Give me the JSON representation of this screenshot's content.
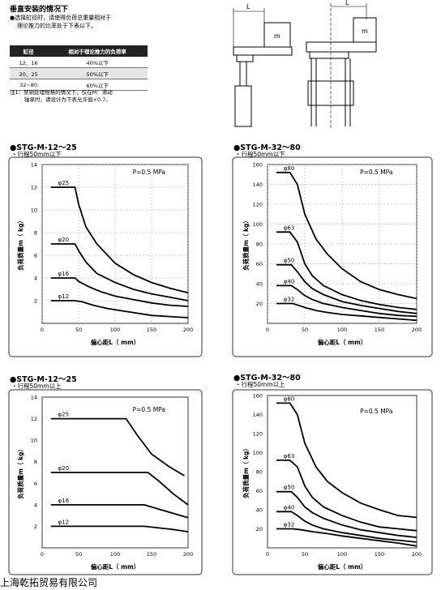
{
  "header": {
    "heading": "垂直安装的情况下",
    "note_line1": "●选择缸径时，请使得负荷总重量相对于",
    "note_line2": "理论推力的比率处于下表以下。"
  },
  "load_table": {
    "headers": [
      "缸径",
      "相对于理论推力的负荷率"
    ],
    "rows": [
      [
        "12、16",
        "40%以下"
      ],
      [
        "20、25",
        "50%以下"
      ],
      [
        "32~80",
        "60%以下"
      ]
    ]
  },
  "footnote": {
    "line1": "注1：禁铜处理规格的情况下，仅在M：滑动",
    "line2": "轴承时，请设计为下表允许值×0.7。"
  },
  "diagram": {
    "dim_label_left": "L",
    "dim_label_right": "L",
    "mass_label_left": "m",
    "mass_label_right": "m"
  },
  "company": "上海乾拓贸易有限公司",
  "colors": {
    "line": "#000000",
    "plot_bg": "#ffffff",
    "frame": "#333333"
  },
  "chart_data": [
    {
      "type": "line",
      "title": "●STG-M-12～25",
      "subtitle": "・行程50mm以下",
      "xlabel": "偏心距L（ mm）",
      "ylabel": "负荷质量m（ kg）",
      "annotation": "P=0.5 MPa",
      "xlim": [
        0,
        200
      ],
      "ylim": [
        0,
        14
      ],
      "x_ticks": [
        "0",
        "50",
        "100",
        "150",
        "200"
      ],
      "y_ticks": [
        "2",
        "4",
        "6",
        "8",
        "10",
        "12",
        "14"
      ],
      "grid": true,
      "series": [
        {
          "name": "φ25",
          "points": [
            [
              12,
              12
            ],
            [
              45,
              12
            ],
            [
              50,
              10.5
            ],
            [
              60,
              8.5
            ],
            [
              75,
              7
            ],
            [
              100,
              5.3
            ],
            [
              125,
              4.3
            ],
            [
              150,
              3.6
            ],
            [
              175,
              3.1
            ],
            [
              200,
              2.7
            ]
          ]
        },
        {
          "name": "φ20",
          "points": [
            [
              12,
              7
            ],
            [
              45,
              7
            ],
            [
              50,
              6.4
            ],
            [
              60,
              5.4
            ],
            [
              75,
              4.4
            ],
            [
              100,
              3.6
            ],
            [
              125,
              3.0
            ],
            [
              150,
              2.6
            ],
            [
              175,
              2.3
            ],
            [
              200,
              2.0
            ]
          ]
        },
        {
          "name": "φ16",
          "points": [
            [
              12,
              4
            ],
            [
              45,
              4
            ],
            [
              50,
              3.7
            ],
            [
              65,
              3.2
            ],
            [
              80,
              2.8
            ],
            [
              100,
              2.4
            ],
            [
              125,
              2.1
            ],
            [
              150,
              1.8
            ],
            [
              175,
              1.6
            ],
            [
              200,
              1.5
            ]
          ]
        },
        {
          "name": "φ12",
          "points": [
            [
              12,
              2
            ],
            [
              45,
              2
            ],
            [
              55,
              1.9
            ],
            [
              70,
              1.6
            ],
            [
              90,
              1.3
            ],
            [
              110,
              1.1
            ],
            [
              130,
              0.9
            ],
            [
              150,
              0.7
            ],
            [
              175,
              0.6
            ],
            [
              200,
              0.5
            ]
          ]
        }
      ]
    },
    {
      "type": "line",
      "title": "●STG-M-32～80",
      "subtitle": "・行程50mm以下",
      "xlabel": "偏心距L（ mm）",
      "ylabel": "负荷质量m（ kg）",
      "annotation": "P=0.5 MPa",
      "xlim": [
        0,
        200
      ],
      "ylim": [
        0,
        160
      ],
      "x_ticks": [
        "0",
        "50",
        "100",
        "150",
        "200"
      ],
      "y_ticks": [
        "20",
        "40",
        "60",
        "80",
        "100",
        "120",
        "140",
        "160"
      ],
      "grid": true,
      "series": [
        {
          "name": "φ80",
          "points": [
            [
              12,
              152
            ],
            [
              30,
              152
            ],
            [
              40,
              140
            ],
            [
              50,
              110
            ],
            [
              65,
              85
            ],
            [
              80,
              70
            ],
            [
              100,
              55
            ],
            [
              125,
              42
            ],
            [
              150,
              34
            ],
            [
              175,
              29
            ],
            [
              200,
              25
            ]
          ]
        },
        {
          "name": "φ63",
          "points": [
            [
              12,
              92
            ],
            [
              30,
              92
            ],
            [
              40,
              82
            ],
            [
              50,
              60
            ],
            [
              60,
              48
            ],
            [
              75,
              38
            ],
            [
              100,
              29
            ],
            [
              125,
              23
            ],
            [
              150,
              19
            ],
            [
              175,
              16
            ],
            [
              200,
              14
            ]
          ]
        },
        {
          "name": "φ50",
          "points": [
            [
              12,
              59
            ],
            [
              32,
              59
            ],
            [
              40,
              52
            ],
            [
              50,
              42
            ],
            [
              60,
              35
            ],
            [
              75,
              29
            ],
            [
              100,
              22
            ],
            [
              125,
              18
            ],
            [
              150,
              15
            ],
            [
              175,
              12
            ],
            [
              200,
              10
            ]
          ]
        },
        {
          "name": "φ40",
          "points": [
            [
              12,
              38
            ],
            [
              32,
              38
            ],
            [
              40,
              34
            ],
            [
              50,
              28
            ],
            [
              60,
              24
            ],
            [
              75,
              20
            ],
            [
              100,
              16
            ],
            [
              125,
              13
            ],
            [
              150,
              10
            ],
            [
              175,
              8
            ],
            [
              200,
              7
            ]
          ]
        },
        {
          "name": "φ32",
          "points": [
            [
              12,
              20
            ],
            [
              34,
              20
            ],
            [
              40,
              18.5
            ],
            [
              50,
              16
            ],
            [
              65,
              13
            ],
            [
              80,
              11
            ],
            [
              100,
              9
            ],
            [
              125,
              7.5
            ],
            [
              150,
              6
            ],
            [
              175,
              4.5
            ],
            [
              200,
              3
            ]
          ]
        }
      ]
    },
    {
      "type": "line",
      "title": "●STG-M-12～25",
      "subtitle": "・行程50mm以上",
      "xlabel": "偏心距L（ mm）",
      "ylabel": "负荷质量m（ kg）",
      "annotation": "P=0.5 MPa",
      "xlim": [
        0,
        200
      ],
      "ylim": [
        0,
        14
      ],
      "x_ticks": [
        "0",
        "50",
        "100",
        "150",
        "200"
      ],
      "y_ticks": [
        "2",
        "4",
        "6",
        "8",
        "10",
        "12",
        "14"
      ],
      "grid": false,
      "series": [
        {
          "name": "φ25",
          "points": [
            [
              12,
              12
            ],
            [
              115,
              12
            ],
            [
              130,
              10.5
            ],
            [
              150,
              8.7
            ],
            [
              175,
              7.5
            ],
            [
              195,
              6.7
            ]
          ]
        },
        {
          "name": "φ20",
          "points": [
            [
              12,
              7
            ],
            [
              145,
              7
            ],
            [
              160,
              6.2
            ],
            [
              180,
              5.0
            ],
            [
              200,
              4.0
            ]
          ]
        },
        {
          "name": "φ16",
          "points": [
            [
              12,
              4
            ],
            [
              140,
              4
            ],
            [
              160,
              3.6
            ],
            [
              180,
              3.2
            ],
            [
              200,
              2.8
            ]
          ]
        },
        {
          "name": "φ12",
          "points": [
            [
              12,
              2
            ],
            [
              140,
              2
            ],
            [
              160,
              1.85
            ],
            [
              180,
              1.7
            ],
            [
              200,
              1.5
            ]
          ]
        }
      ]
    },
    {
      "type": "line",
      "title": "●STG-M-32～80",
      "subtitle": "・行程50mm以上",
      "xlabel": "偏心距L（ mm）",
      "ylabel": "负荷质量m（ kg）",
      "annotation": "P=0.5 MPa",
      "xlim": [
        0,
        200
      ],
      "ylim": [
        0,
        160
      ],
      "x_ticks": [
        "0",
        "50",
        "100",
        "150",
        "200"
      ],
      "y_ticks": [
        "20",
        "40",
        "60",
        "80",
        "100",
        "120",
        "140",
        "160"
      ],
      "grid": false,
      "series": [
        {
          "name": "φ80",
          "points": [
            [
              12,
              152
            ],
            [
              30,
              152
            ],
            [
              40,
              140
            ],
            [
              50,
              110
            ],
            [
              65,
              85
            ],
            [
              80,
              70
            ],
            [
              100,
              58
            ],
            [
              125,
              47
            ],
            [
              150,
              40
            ],
            [
              175,
              34
            ],
            [
              200,
              32
            ]
          ]
        },
        {
          "name": "φ63",
          "points": [
            [
              12,
              92
            ],
            [
              30,
              92
            ],
            [
              40,
              85
            ],
            [
              50,
              65
            ],
            [
              60,
              53
            ],
            [
              75,
              43
            ],
            [
              100,
              34
            ],
            [
              125,
              27
            ],
            [
              150,
              22
            ],
            [
              175,
              20
            ],
            [
              200,
              18
            ]
          ]
        },
        {
          "name": "φ50",
          "points": [
            [
              12,
              59
            ],
            [
              32,
              59
            ],
            [
              40,
              53
            ],
            [
              50,
              43
            ],
            [
              60,
              37
            ],
            [
              75,
              31
            ],
            [
              100,
              24
            ],
            [
              125,
              19
            ],
            [
              150,
              16
            ],
            [
              175,
              13
            ],
            [
              200,
              11
            ]
          ]
        },
        {
          "name": "φ40",
          "points": [
            [
              12,
              38
            ],
            [
              32,
              38
            ],
            [
              40,
              34
            ],
            [
              50,
              28
            ],
            [
              60,
              24
            ],
            [
              75,
              20
            ],
            [
              100,
              16
            ],
            [
              125,
              13
            ],
            [
              150,
              10
            ],
            [
              175,
              8
            ],
            [
              200,
              6
            ]
          ]
        },
        {
          "name": "φ32",
          "points": [
            [
              12,
              20
            ],
            [
              34,
              20
            ],
            [
              45,
              19
            ],
            [
              60,
              17
            ],
            [
              80,
              15
            ],
            [
              100,
              12.5
            ],
            [
              125,
              10
            ],
            [
              150,
              7.5
            ],
            [
              175,
              5
            ],
            [
              200,
              2
            ]
          ]
        }
      ]
    }
  ]
}
